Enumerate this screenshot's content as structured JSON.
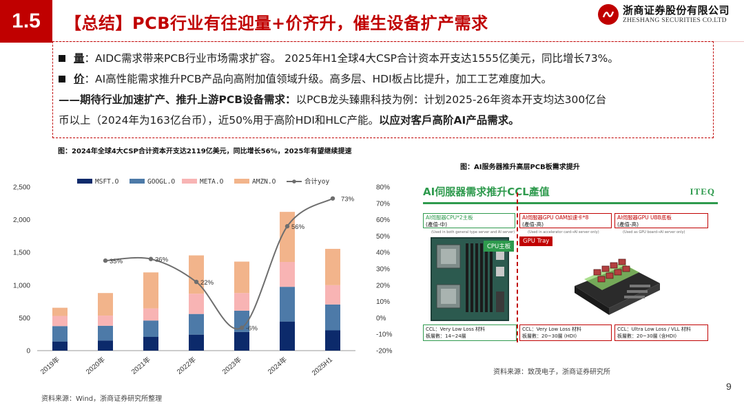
{
  "header": {
    "section_number": "1.5",
    "title": "【总结】PCB行业有往迎量+价齐升，催生设备扩产需求",
    "logo_cn": "浙商证券股份有限公司",
    "logo_en": "ZHESHANG SECURITIES CO.LTD"
  },
  "summary": {
    "line1_kw": "量",
    "line1_text": "：AIDC需求带来PCB行业市场需求扩容。 2025年H1全球4大CSP合计资本开支达1555亿美元，同比增长73%。",
    "line2_kw": "价",
    "line2_text": "：AI高性能需求推升PCB产品向高附加值领域升级。高多层、HDI板占比提升，加工工艺难度加大。",
    "line3_bold": "——期待行业加速扩产、推升上游PCB设备需求：",
    "line3_text": "以PCB龙头臻鼎科技为例：计划2025-26年资本开支均达300亿台",
    "line4_text": "币以上（2024年为163亿台币），近50%用于高阶HDI和HLC产能。",
    "line4_bold": "以应对客戶高阶AI产品需求。"
  },
  "left_figure": {
    "caption": "图：2024年全球4大CSP合计资本开支达2119亿美元，同比增长56%，2025年有望继续提速",
    "source": "资料来源：Wind，浙商证券研究所整理"
  },
  "right_figure": {
    "caption": "图：AI服务器推升高层PCB板需求提升",
    "source": "资料来源：致茂电子，浙商证券研究所",
    "panel_title": "AI伺服器需求推升CCL產值",
    "panel_logo": "ITEQ",
    "col1": {
      "hdr": "AI伺服器CPU*2主板",
      "sub": "(產值-中)",
      "note": "(Used in both general type server and AI server)",
      "tag": "CPU主板",
      "foot1": "CCL：Very Low Loss 材料",
      "foot2": "板層數：14~24層"
    },
    "col2": {
      "hdr": "AI伺服器GPU OAM加速卡*8",
      "sub": "(產值-高)",
      "note": "(Used in accelerator card→AI server only)",
      "tag": "GPU Tray",
      "foot1": "CCL：Very Low Loss 材料",
      "foot2": "板層數：20~30層 (HDI)"
    },
    "col3": {
      "hdr": "AI伺服器GPU UBB底板",
      "sub": "(產值-高)",
      "note": "(Used as GPU board→AI server only)",
      "foot1": "CCL：Ultra Low Loss / VLL 材料",
      "foot2": "板層數：20~30層 (含HDI)"
    }
  },
  "page_number": "9",
  "colors": {
    "brand_red": "#c00000",
    "msft": "#0c2a6b",
    "googl": "#4d7aa8",
    "meta": "#f8b4b4",
    "amzn": "#f2b48b",
    "yoy": "#6e6e6e",
    "iteq_green": "#2e9a4d"
  },
  "chart_data": {
    "type": "bar",
    "stacked": true,
    "categories": [
      "2019年",
      "2020年",
      "2021年",
      "2022年",
      "2023年",
      "2024年",
      "2025H1"
    ],
    "series": [
      {
        "name": "MSFT.O",
        "values": [
          140,
          155,
          210,
          245,
          285,
          445,
          310
        ],
        "color": "#0c2a6b"
      },
      {
        "name": "GOOGL.O",
        "values": [
          235,
          225,
          250,
          315,
          325,
          530,
          395
        ],
        "color": "#4d7aa8"
      },
      {
        "name": "META.O",
        "values": [
          155,
          155,
          185,
          310,
          270,
          380,
          295
        ],
        "color": "#f8b4b4"
      },
      {
        "name": "AMZN.O",
        "values": [
          125,
          345,
          550,
          585,
          480,
          765,
          555
        ],
        "color": "#f2b48b"
      }
    ],
    "line_series": {
      "name": "合计yoy",
      "axis": "right",
      "values": [
        null,
        35,
        36,
        22,
        -6,
        56,
        73
      ],
      "labels": [
        "",
        "35%",
        "36%",
        "22%",
        "-6%",
        "56%",
        "73%"
      ]
    },
    "y_left": {
      "min": 0,
      "max": 2500,
      "ticks": [
        "0",
        "500",
        "1,000",
        "1,500",
        "2,000",
        "2,500"
      ],
      "tick_values": [
        0,
        500,
        1000,
        1500,
        2000,
        2500
      ]
    },
    "y_right": {
      "min": -20,
      "max": 80,
      "ticks": [
        "-20%",
        "-10%",
        "0%",
        "10%",
        "20%",
        "30%",
        "40%",
        "50%",
        "60%",
        "70%",
        "80%"
      ],
      "tick_values": [
        -20,
        -10,
        0,
        10,
        20,
        30,
        40,
        50,
        60,
        70,
        80
      ]
    },
    "legend_position": "top",
    "grid": false
  }
}
